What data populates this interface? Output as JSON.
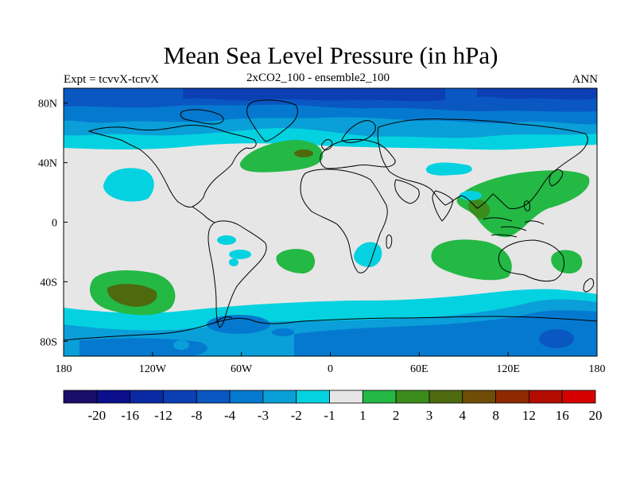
{
  "title": "Mean Sea Level Pressure (in hPa)",
  "subtitle_left": "Expt = tcvvX-tcrvX",
  "subtitle_center": "2xCO2_100 - ensemble2_100",
  "subtitle_right": "ANN",
  "chart_data": {
    "type": "heatmap",
    "x_ticks": [
      "180",
      "120W",
      "60W",
      "0",
      "60E",
      "120E",
      "180"
    ],
    "y_ticks": [
      "80N",
      "40N",
      "0",
      "40S",
      "80S"
    ],
    "colorbar": {
      "labels": [
        "-20",
        "-16",
        "-12",
        "-8",
        "-4",
        "-3",
        "-2",
        "-1",
        "1",
        "2",
        "3",
        "4",
        "8",
        "12",
        "16",
        "20"
      ],
      "colors": [
        "#1b0e6a",
        "#0b0f8c",
        "#0a2aa3",
        "#0c3fb4",
        "#0a57c2",
        "#0579cf",
        "#0a9fd8",
        "#05d2e0",
        "#e6e6e6",
        "#24b845",
        "#3c8c1c",
        "#4e6a0e",
        "#704d06",
        "#8f2a00",
        "#b40c00",
        "#d60000"
      ]
    }
  },
  "colors": {
    "neutral": "#e6e6e6",
    "land_outline": "#000000"
  }
}
